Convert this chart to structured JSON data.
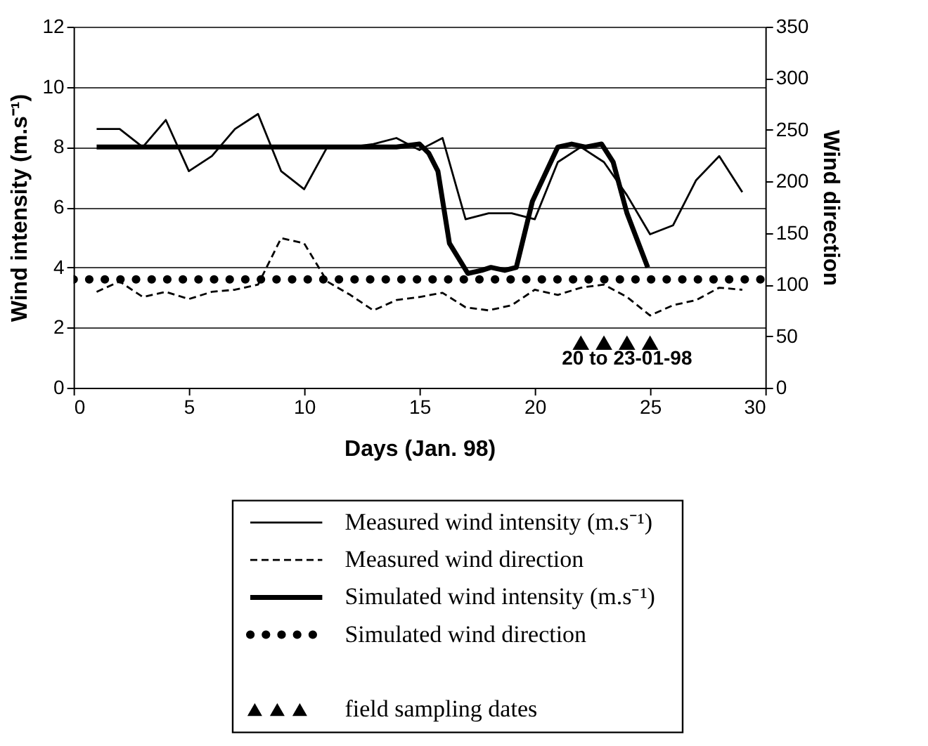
{
  "chart_data": {
    "type": "line",
    "xlabel": "Days (Jan. 98)",
    "ylabel": "Wind intensity  (m.s⁻¹)",
    "y2label": "Wind direction",
    "xlim": [
      0,
      30
    ],
    "xticks": [
      0,
      5,
      10,
      15,
      20,
      25,
      30
    ],
    "ylim": [
      0,
      12
    ],
    "yticks": [
      0,
      2,
      4,
      6,
      8,
      10,
      12
    ],
    "y2lim": [
      0,
      350
    ],
    "y2ticks": [
      0,
      50,
      100,
      150,
      200,
      250,
      300,
      350
    ],
    "grid": "y",
    "legend": "bottom",
    "annotations": [
      "20 to 23-01-98"
    ],
    "series": [
      {
        "name": "Measured wind intensity (m.s⁻¹)",
        "color": "#000000",
        "line_style": "solid",
        "x": [
          1,
          2,
          3,
          4,
          5,
          6,
          7,
          8,
          9,
          10,
          11,
          12,
          13,
          14,
          15,
          16,
          17,
          18,
          19,
          20,
          21,
          22,
          23,
          24,
          25,
          26,
          27,
          28,
          29
        ],
        "values": [
          8.6,
          8.6,
          8.0,
          8.9,
          7.2,
          7.7,
          8.6,
          9.1,
          7.2,
          6.6,
          8.0,
          8.0,
          8.1,
          8.3,
          7.9,
          8.3,
          5.6,
          5.8,
          5.8,
          5.6,
          7.5,
          8.0,
          7.5,
          6.4,
          5.1,
          5.4,
          6.9,
          7.7,
          6.5
        ]
      },
      {
        "name": "Measured wind direction",
        "color": "#000000",
        "line_style": "dashed",
        "axis": "y2",
        "x": [
          1,
          2,
          3,
          4,
          5,
          6,
          7,
          8,
          9,
          10,
          11,
          12,
          13,
          14,
          15,
          16,
          17,
          18,
          19,
          20,
          21,
          22,
          23,
          24,
          25,
          26,
          27,
          28,
          29
        ],
        "values": [
          93,
          103,
          88,
          93,
          86,
          93,
          95,
          100,
          145,
          140,
          103,
          90,
          75,
          85,
          88,
          92,
          78,
          75,
          80,
          95,
          90,
          97,
          100,
          88,
          70,
          80,
          85,
          97,
          95
        ]
      },
      {
        "name": "Simulated wind intensity (m.s⁻¹)",
        "color": "#000000",
        "line_style": "solid",
        "x": [
          1,
          14,
          15,
          15.4,
          15.8,
          16.3,
          17.1,
          17.7,
          18.1,
          18.7,
          19.2,
          19.9,
          21,
          21.6,
          22.2,
          22.9,
          23.4,
          24,
          24.9
        ],
        "values": [
          8.0,
          8.0,
          8.1,
          7.8,
          7.2,
          4.8,
          3.8,
          3.9,
          4.0,
          3.9,
          4.0,
          6.2,
          8.0,
          8.1,
          8.0,
          8.1,
          7.5,
          5.8,
          4.0
        ]
      },
      {
        "name": "Simulated wind direction",
        "color": "#000000",
        "line_style": "dotted",
        "axis": "y2",
        "x": [
          0,
          30
        ],
        "values": [
          105,
          105
        ]
      },
      {
        "name": "field sampling dates",
        "color": "#000000",
        "type": "scatter",
        "marker": "triangle",
        "x": [
          22,
          23,
          24,
          25
        ],
        "values": [
          1.5,
          1.5,
          1.5,
          1.5
        ]
      }
    ]
  }
}
